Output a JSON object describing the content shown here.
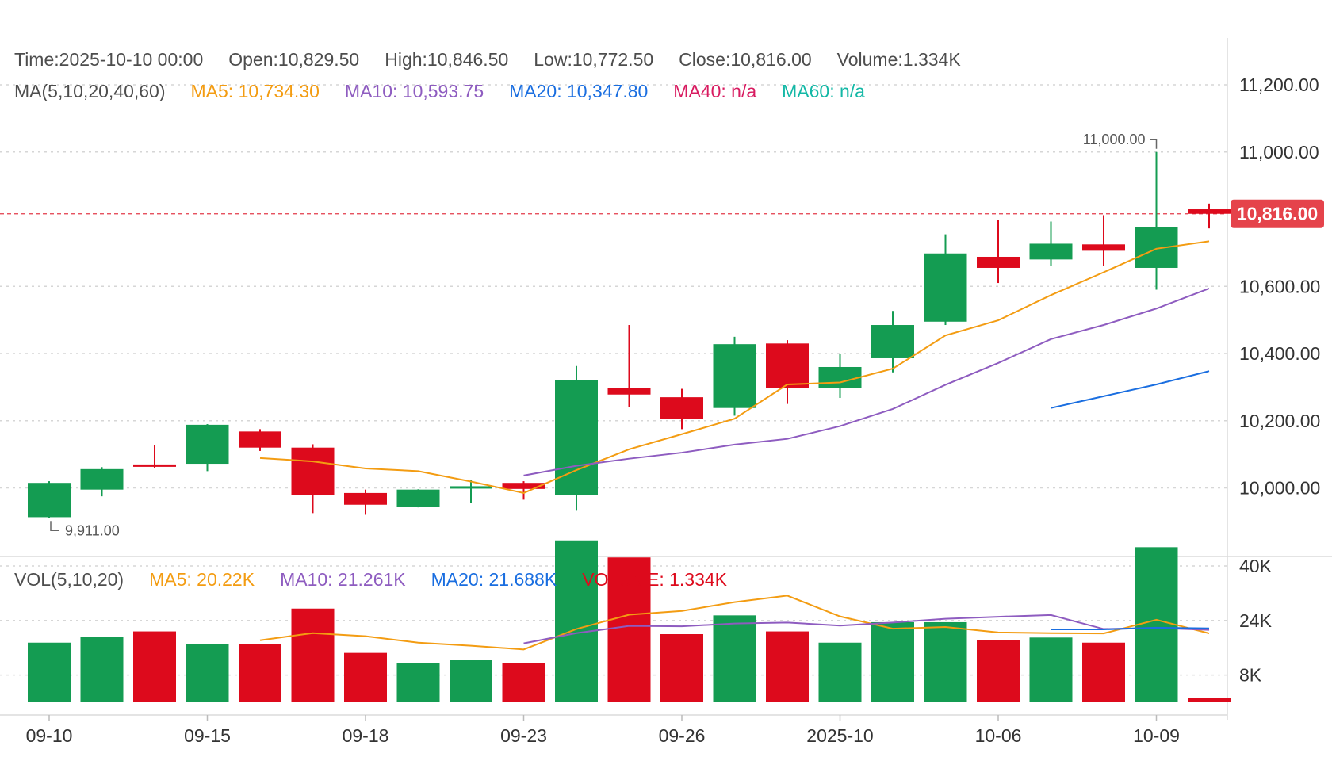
{
  "header": {
    "time_text": "Time:2025-10-10 00:00",
    "open_text": "Open:10,829.50",
    "high_text": "High:10,846.50",
    "low_text": "Low:10,772.50",
    "close_text": "Close:10,816.00",
    "volume_text": "Volume:1.334K"
  },
  "ma_legend": {
    "title": "MA(5,10,20,40,60)",
    "ma5": "MA5: 10,734.30",
    "ma10": "MA10: 10,593.75",
    "ma20": "MA20: 10,347.80",
    "ma40": "MA40: n/a",
    "ma60": "MA60: n/a"
  },
  "vol_legend": {
    "title": "VOL(5,10,20)",
    "ma5": "MA5: 20.22K",
    "ma10": "MA10: 21.261K",
    "ma20": "MA20: 21.688K",
    "volume": "VOLUME: 1.334K"
  },
  "price_tag": "10,816.00",
  "max_marker": "11,000.00",
  "min_marker": "9,911.00",
  "colors": {
    "up": "#149c52",
    "down": "#dd0a1c",
    "ma5": "#f39c12",
    "ma10": "#8e5cc0",
    "ma20": "#1a6ee0",
    "ma40": "#d81b60",
    "ma60": "#14b8a6"
  },
  "chart_data": {
    "type": "candlestick",
    "x_labels": [
      "09-10",
      "09-15",
      "09-18",
      "09-23",
      "09-26",
      "2025-10",
      "10-06",
      "10-09"
    ],
    "price_axis_ticks": [
      "11,200.00",
      "11,000.00",
      "10,600.00",
      "10,400.00",
      "10,200.00",
      "10,000.00"
    ],
    "volume_axis_ticks": [
      "40K",
      "24K",
      "8K"
    ],
    "candles": [
      {
        "open": 9913,
        "close": 10015,
        "high": 10020,
        "low": 9911,
        "volume": 17.5
      },
      {
        "open": 9995,
        "close": 10056,
        "high": 10062,
        "low": 9975,
        "volume": 19.2
      },
      {
        "open": 10070,
        "close": 10064,
        "high": 10128,
        "low": 10058,
        "volume": 20.8
      },
      {
        "open": 10072,
        "close": 10188,
        "high": 10190,
        "low": 10050,
        "volume": 17.0
      },
      {
        "open": 10168,
        "close": 10120,
        "high": 10175,
        "low": 10110,
        "volume": 17.0
      },
      {
        "open": 10120,
        "close": 9978,
        "high": 10130,
        "low": 9925,
        "volume": 27.5
      },
      {
        "open": 9985,
        "close": 9950,
        "high": 9995,
        "low": 9920,
        "volume": 14.5
      },
      {
        "open": 9944,
        "close": 9995,
        "high": 9996,
        "low": 9942,
        "volume": 11.5
      },
      {
        "open": 10000,
        "close": 10005,
        "high": 10023,
        "low": 9955,
        "volume": 12.5
      },
      {
        "open": 10015,
        "close": 9997,
        "high": 10020,
        "low": 9965,
        "volume": 11.5
      },
      {
        "open": 9980,
        "close": 10320,
        "high": 10363,
        "low": 9932,
        "volume": 47.5
      },
      {
        "open": 10298,
        "close": 10278,
        "high": 10485,
        "low": 10240,
        "volume": 42.5
      },
      {
        "open": 10270,
        "close": 10205,
        "high": 10295,
        "low": 10175,
        "volume": 20.0
      },
      {
        "open": 10238,
        "close": 10428,
        "high": 10450,
        "low": 10215,
        "volume": 25.5
      },
      {
        "open": 10430,
        "close": 10298,
        "high": 10440,
        "low": 10250,
        "volume": 20.8
      },
      {
        "open": 10298,
        "close": 10360,
        "high": 10398,
        "low": 10268,
        "volume": 17.5
      },
      {
        "open": 10386,
        "close": 10485,
        "high": 10527,
        "low": 10344,
        "volume": 23.5
      },
      {
        "open": 10495,
        "close": 10698,
        "high": 10755,
        "low": 10485,
        "volume": 23.5
      },
      {
        "open": 10688,
        "close": 10655,
        "high": 10798,
        "low": 10610,
        "volume": 18.2
      },
      {
        "open": 10680,
        "close": 10727,
        "high": 10793,
        "low": 10660,
        "volume": 19.0
      },
      {
        "open": 10725,
        "close": 10706,
        "high": 10812,
        "low": 10662,
        "volume": 17.5
      },
      {
        "open": 10655,
        "close": 10776,
        "high": 11000,
        "low": 10590,
        "volume": 45.5
      },
      {
        "open": 10829.5,
        "close": 10816,
        "high": 10846.5,
        "low": 10772.5,
        "volume": 1.334
      }
    ],
    "ma5": [
      null,
      null,
      null,
      null,
      10089,
      10079,
      10058,
      10050,
      10019,
      9985,
      10053,
      10115,
      10160,
      10206,
      10308,
      10314,
      10355,
      10454,
      10499,
      10574,
      10642,
      10712,
      10734.3
    ],
    "ma10": [
      null,
      null,
      null,
      null,
      null,
      null,
      null,
      null,
      null,
      10037,
      10066,
      10087,
      10105,
      10129,
      10146,
      10184,
      10235,
      10307,
      10372,
      10443,
      10485,
      10534,
      10593.75
    ],
    "ma20": [
      null,
      null,
      null,
      null,
      null,
      null,
      null,
      null,
      null,
      null,
      null,
      null,
      null,
      null,
      null,
      null,
      null,
      null,
      null,
      10238,
      10273,
      10308,
      10347.8
    ],
    "vol_ma5": [
      null,
      null,
      null,
      null,
      18.2,
      20.3,
      19.4,
      17.5,
      16.6,
      15.5,
      21.5,
      25.7,
      26.8,
      29.4,
      31.3,
      25.2,
      21.6,
      22.1,
      20.5,
      20.3,
      20.2,
      24.2,
      20.22
    ],
    "vol_ma10": [
      null,
      null,
      null,
      null,
      null,
      null,
      null,
      null,
      null,
      17.3,
      20.3,
      22.4,
      22.3,
      23.1,
      23.4,
      22.5,
      23.4,
      24.5,
      25.1,
      25.6,
      21.5,
      21.8,
      21.261
    ],
    "vol_ma20": [
      null,
      null,
      null,
      null,
      null,
      null,
      null,
      null,
      null,
      null,
      null,
      null,
      null,
      null,
      null,
      null,
      null,
      null,
      null,
      21.4,
      21.4,
      21.9,
      21.688
    ],
    "price_range": [
      9780,
      11350
    ],
    "volume_range": [
      0,
      48
    ],
    "grid": true,
    "current_price": 10816
  }
}
